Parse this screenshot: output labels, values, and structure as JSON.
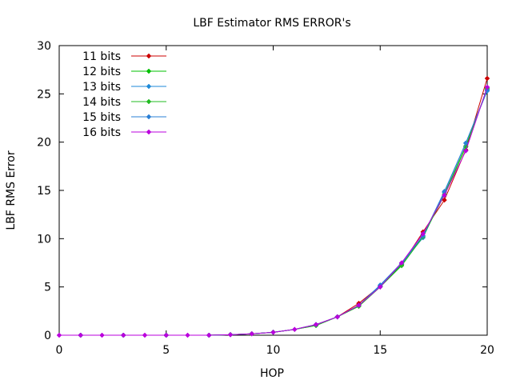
{
  "chart_data": {
    "type": "line",
    "title": "LBF Estimator RMS ERROR's",
    "xlabel": "HOP",
    "ylabel": "LBF RMS Error",
    "xlim": [
      0,
      20
    ],
    "ylim": [
      0,
      30
    ],
    "xticks": [
      0,
      5,
      10,
      15,
      20
    ],
    "yticks": [
      0,
      5,
      10,
      15,
      20,
      25,
      30
    ],
    "grid": false,
    "legend_position": "top-left",
    "x": [
      0,
      1,
      2,
      3,
      4,
      5,
      6,
      7,
      8,
      9,
      10,
      11,
      12,
      13,
      14,
      15,
      16,
      17,
      18,
      19,
      20
    ],
    "series": [
      {
        "name": "11 bits",
        "color": "#cc0000",
        "values": [
          0,
          0,
          0,
          0,
          0,
          0,
          0,
          0,
          0.05,
          0.15,
          0.3,
          0.6,
          1.1,
          1.9,
          3.3,
          5.1,
          7.3,
          10.7,
          14.0,
          19.2,
          26.6
        ]
      },
      {
        "name": "12 bits",
        "color": "#00c000",
        "values": [
          0,
          0,
          0,
          0,
          0,
          0,
          0,
          0,
          0.05,
          0.15,
          0.3,
          0.6,
          1.0,
          1.9,
          3.0,
          5.0,
          7.3,
          10.3,
          14.5,
          19.5,
          25.6
        ]
      },
      {
        "name": "13 bits",
        "color": "#1e8ad8",
        "values": [
          0,
          0,
          0,
          0,
          0,
          0,
          0,
          0,
          0.05,
          0.15,
          0.3,
          0.6,
          1.1,
          1.9,
          3.1,
          5.1,
          7.4,
          10.1,
          14.8,
          19.9,
          25.3
        ]
      },
      {
        "name": "14 bits",
        "color": "#22bb22",
        "values": [
          0,
          0,
          0,
          0,
          0,
          0,
          0,
          0,
          0.05,
          0.15,
          0.3,
          0.6,
          1.0,
          1.9,
          3.0,
          5.0,
          7.2,
          10.2,
          14.6,
          19.6,
          25.5
        ]
      },
      {
        "name": "15 bits",
        "color": "#2a7fd6",
        "values": [
          0,
          0,
          0,
          0,
          0,
          0,
          0,
          0,
          0.05,
          0.15,
          0.3,
          0.6,
          1.1,
          1.9,
          3.1,
          5.2,
          7.5,
          10.3,
          14.9,
          19.9,
          25.4
        ]
      },
      {
        "name": "16 bits",
        "color": "#bb00dd",
        "values": [
          0,
          0,
          0,
          0,
          0,
          0,
          0,
          0,
          0.05,
          0.15,
          0.3,
          0.6,
          1.1,
          1.9,
          3.1,
          5.0,
          7.5,
          10.5,
          14.5,
          19.1,
          25.7
        ]
      }
    ]
  }
}
